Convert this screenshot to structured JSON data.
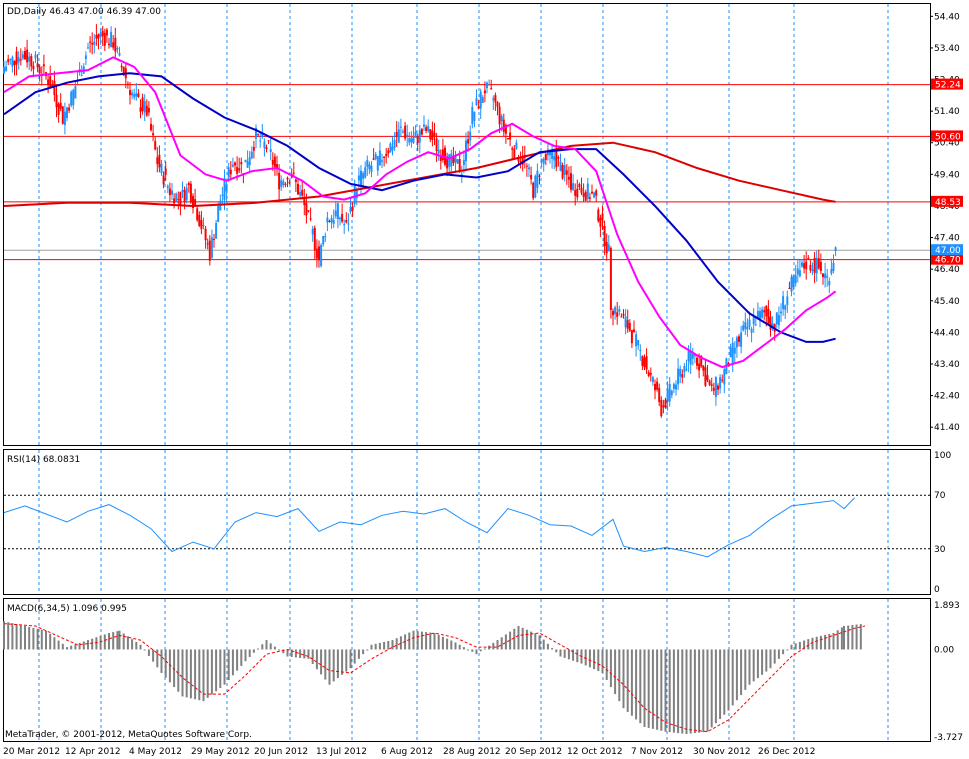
{
  "chart_data": {
    "type": "candlestick",
    "symbol_header": "DD,Daily  46.43 47.00 46.39 47.00",
    "footer": "MetaTrader, © 2001-2012, MetaQuotes Software Corp.",
    "colors": {
      "bull": "#1e90ff",
      "bear": "#ff0000",
      "ma_fast": "#ff00ff",
      "ma_mid": "#0000c8",
      "ma_slow": "#dd0000",
      "level": "#ff0000",
      "grid": "#1e90ff",
      "rsi": "#1e90ff",
      "macd_hist": "#808080",
      "macd_signal": "#ff0000",
      "current_tag": "#1e90ff"
    },
    "x_labels": [
      "20 Mar 2012",
      "12 Apr 2012",
      "4 May 2012",
      "29 May 2012",
      "20 Jun 2012",
      "13 Jul 2012",
      "6 Aug 2012",
      "28 Aug 2012",
      "20 Sep 2012",
      "12 Oct 2012",
      "7 Nov 2012",
      "30 Nov 2012",
      "26 Dec 2012"
    ],
    "price_axis": {
      "ylim": [
        40.9,
        54.6
      ],
      "ticks": [
        "54.40",
        "53.40",
        "52.40",
        "51.40",
        "50.40",
        "49.40",
        "48.40",
        "47.40",
        "46.40",
        "45.40",
        "44.40",
        "43.40",
        "42.40",
        "41.40"
      ]
    },
    "levels": [
      {
        "value": 52.24,
        "label": "52.24"
      },
      {
        "value": 50.6,
        "label": "50.60"
      },
      {
        "value": 48.53,
        "label": "48.53"
      },
      {
        "value": 46.7,
        "label": "46.70"
      }
    ],
    "current_price": {
      "value": 47.0,
      "label": "47.00"
    },
    "price_close": [
      {
        "x": 0,
        "v": 52.8
      },
      {
        "x": 8,
        "v": 53.2
      },
      {
        "x": 14,
        "v": 53.0
      },
      {
        "x": 22,
        "v": 52.3
      },
      {
        "x": 28,
        "v": 51.2
      },
      {
        "x": 33,
        "v": 52.0
      },
      {
        "x": 40,
        "v": 53.4
      },
      {
        "x": 46,
        "v": 53.8
      },
      {
        "x": 52,
        "v": 53.6
      },
      {
        "x": 56,
        "v": 52.8
      },
      {
        "x": 62,
        "v": 51.8
      },
      {
        "x": 68,
        "v": 51.4
      },
      {
        "x": 73,
        "v": 49.8
      },
      {
        "x": 79,
        "v": 48.9
      },
      {
        "x": 84,
        "v": 48.6
      },
      {
        "x": 88,
        "v": 49.0
      },
      {
        "x": 93,
        "v": 48.0
      },
      {
        "x": 98,
        "v": 46.9
      },
      {
        "x": 103,
        "v": 48.6
      },
      {
        "x": 109,
        "v": 49.8
      },
      {
        "x": 114,
        "v": 49.6
      },
      {
        "x": 120,
        "v": 50.6
      },
      {
        "x": 126,
        "v": 50.2
      },
      {
        "x": 131,
        "v": 49.2
      },
      {
        "x": 137,
        "v": 49.4
      },
      {
        "x": 142,
        "v": 48.6
      },
      {
        "x": 147,
        "v": 47.5
      },
      {
        "x": 150,
        "v": 46.7
      },
      {
        "x": 154,
        "v": 48.0
      },
      {
        "x": 159,
        "v": 48.2
      },
      {
        "x": 163,
        "v": 47.7
      },
      {
        "x": 168,
        "v": 49.1
      },
      {
        "x": 173,
        "v": 49.6
      },
      {
        "x": 178,
        "v": 49.8
      },
      {
        "x": 184,
        "v": 50.3
      },
      {
        "x": 189,
        "v": 50.8
      },
      {
        "x": 195,
        "v": 50.5
      },
      {
        "x": 201,
        "v": 50.8
      },
      {
        "x": 207,
        "v": 50.2
      },
      {
        "x": 212,
        "v": 49.8
      },
      {
        "x": 218,
        "v": 49.6
      },
      {
        "x": 223,
        "v": 51.3
      },
      {
        "x": 229,
        "v": 52.1
      },
      {
        "x": 233,
        "v": 51.8
      },
      {
        "x": 238,
        "v": 50.8
      },
      {
        "x": 243,
        "v": 50.2
      },
      {
        "x": 248,
        "v": 49.8
      },
      {
        "x": 252,
        "v": 48.9
      },
      {
        "x": 256,
        "v": 49.8
      },
      {
        "x": 262,
        "v": 50.0
      },
      {
        "x": 266,
        "v": 49.5
      },
      {
        "x": 271,
        "v": 49.0
      },
      {
        "x": 276,
        "v": 48.9
      },
      {
        "x": 281,
        "v": 48.7
      },
      {
        "x": 288,
        "v": 46.9
      },
      {
        "x": 289,
        "v": 45.3
      },
      {
        "x": 293,
        "v": 45.0
      },
      {
        "x": 298,
        "v": 44.5
      },
      {
        "x": 304,
        "v": 43.6
      },
      {
        "x": 309,
        "v": 42.8
      },
      {
        "x": 313,
        "v": 42.0
      },
      {
        "x": 318,
        "v": 42.6
      },
      {
        "x": 323,
        "v": 43.2
      },
      {
        "x": 328,
        "v": 43.8
      },
      {
        "x": 332,
        "v": 43.3
      },
      {
        "x": 337,
        "v": 42.5
      },
      {
        "x": 342,
        "v": 43.0
      },
      {
        "x": 347,
        "v": 43.8
      },
      {
        "x": 352,
        "v": 44.4
      },
      {
        "x": 357,
        "v": 44.8
      },
      {
        "x": 362,
        "v": 45.0
      },
      {
        "x": 367,
        "v": 44.6
      },
      {
        "x": 372,
        "v": 45.5
      },
      {
        "x": 377,
        "v": 46.1
      },
      {
        "x": 382,
        "v": 46.6
      },
      {
        "x": 387,
        "v": 46.5
      },
      {
        "x": 392,
        "v": 46.1
      },
      {
        "x": 396,
        "v": 47.0
      }
    ],
    "ma_fast": [
      {
        "x": 0,
        "v": 52.0
      },
      {
        "x": 12,
        "v": 52.5
      },
      {
        "x": 26,
        "v": 52.6
      },
      {
        "x": 40,
        "v": 52.7
      },
      {
        "x": 52,
        "v": 53.1
      },
      {
        "x": 62,
        "v": 52.8
      },
      {
        "x": 72,
        "v": 52.0
      },
      {
        "x": 84,
        "v": 50.0
      },
      {
        "x": 96,
        "v": 49.4
      },
      {
        "x": 106,
        "v": 49.2
      },
      {
        "x": 118,
        "v": 49.5
      },
      {
        "x": 130,
        "v": 49.6
      },
      {
        "x": 142,
        "v": 49.2
      },
      {
        "x": 152,
        "v": 48.7
      },
      {
        "x": 162,
        "v": 48.6
      },
      {
        "x": 172,
        "v": 48.8
      },
      {
        "x": 182,
        "v": 49.4
      },
      {
        "x": 192,
        "v": 49.8
      },
      {
        "x": 202,
        "v": 50.1
      },
      {
        "x": 212,
        "v": 49.9
      },
      {
        "x": 222,
        "v": 50.2
      },
      {
        "x": 232,
        "v": 50.7
      },
      {
        "x": 242,
        "v": 51.0
      },
      {
        "x": 252,
        "v": 50.6
      },
      {
        "x": 262,
        "v": 50.3
      },
      {
        "x": 272,
        "v": 50.2
      },
      {
        "x": 282,
        "v": 49.5
      },
      {
        "x": 292,
        "v": 47.5
      },
      {
        "x": 302,
        "v": 46.0
      },
      {
        "x": 312,
        "v": 44.9
      },
      {
        "x": 322,
        "v": 44.0
      },
      {
        "x": 332,
        "v": 43.6
      },
      {
        "x": 342,
        "v": 43.3
      },
      {
        "x": 352,
        "v": 43.5
      },
      {
        "x": 362,
        "v": 44.0
      },
      {
        "x": 372,
        "v": 44.5
      },
      {
        "x": 382,
        "v": 45.1
      },
      {
        "x": 392,
        "v": 45.5
      },
      {
        "x": 396,
        "v": 45.7
      }
    ],
    "ma_mid": [
      {
        "x": 0,
        "v": 51.3
      },
      {
        "x": 15,
        "v": 52.0
      },
      {
        "x": 30,
        "v": 52.3
      },
      {
        "x": 45,
        "v": 52.5
      },
      {
        "x": 60,
        "v": 52.6
      },
      {
        "x": 75,
        "v": 52.5
      },
      {
        "x": 90,
        "v": 51.8
      },
      {
        "x": 105,
        "v": 51.2
      },
      {
        "x": 120,
        "v": 50.8
      },
      {
        "x": 135,
        "v": 50.3
      },
      {
        "x": 150,
        "v": 49.6
      },
      {
        "x": 165,
        "v": 49.1
      },
      {
        "x": 180,
        "v": 48.9
      },
      {
        "x": 195,
        "v": 49.2
      },
      {
        "x": 210,
        "v": 49.4
      },
      {
        "x": 225,
        "v": 49.3
      },
      {
        "x": 240,
        "v": 49.5
      },
      {
        "x": 255,
        "v": 50.1
      },
      {
        "x": 270,
        "v": 50.2
      },
      {
        "x": 282,
        "v": 50.2
      },
      {
        "x": 295,
        "v": 49.4
      },
      {
        "x": 310,
        "v": 48.4
      },
      {
        "x": 325,
        "v": 47.3
      },
      {
        "x": 340,
        "v": 46.0
      },
      {
        "x": 355,
        "v": 45.0
      },
      {
        "x": 370,
        "v": 44.4
      },
      {
        "x": 382,
        "v": 44.1
      },
      {
        "x": 390,
        "v": 44.1
      },
      {
        "x": 396,
        "v": 44.2
      }
    ],
    "ma_slow": [
      {
        "x": 0,
        "v": 48.4
      },
      {
        "x": 30,
        "v": 48.5
      },
      {
        "x": 60,
        "v": 48.5
      },
      {
        "x": 90,
        "v": 48.4
      },
      {
        "x": 120,
        "v": 48.5
      },
      {
        "x": 150,
        "v": 48.7
      },
      {
        "x": 175,
        "v": 49.0
      },
      {
        "x": 200,
        "v": 49.3
      },
      {
        "x": 225,
        "v": 49.6
      },
      {
        "x": 250,
        "v": 50.0
      },
      {
        "x": 270,
        "v": 50.3
      },
      {
        "x": 290,
        "v": 50.4
      },
      {
        "x": 310,
        "v": 50.1
      },
      {
        "x": 330,
        "v": 49.6
      },
      {
        "x": 350,
        "v": 49.2
      },
      {
        "x": 370,
        "v": 48.9
      },
      {
        "x": 390,
        "v": 48.6
      },
      {
        "x": 396,
        "v": 48.53
      }
    ],
    "rsi": {
      "label": "RSI(14) 68.0831",
      "ylim": [
        0,
        100
      ],
      "ticks": [
        "100",
        "70",
        "30",
        "0"
      ],
      "levels": [
        70,
        30
      ],
      "points": [
        {
          "x": 0,
          "v": 57
        },
        {
          "x": 10,
          "v": 62
        },
        {
          "x": 20,
          "v": 56
        },
        {
          "x": 30,
          "v": 50
        },
        {
          "x": 40,
          "v": 58
        },
        {
          "x": 50,
          "v": 63
        },
        {
          "x": 60,
          "v": 55
        },
        {
          "x": 70,
          "v": 45
        },
        {
          "x": 80,
          "v": 28
        },
        {
          "x": 90,
          "v": 35
        },
        {
          "x": 100,
          "v": 30
        },
        {
          "x": 110,
          "v": 50
        },
        {
          "x": 120,
          "v": 57
        },
        {
          "x": 130,
          "v": 54
        },
        {
          "x": 140,
          "v": 60
        },
        {
          "x": 150,
          "v": 43
        },
        {
          "x": 160,
          "v": 50
        },
        {
          "x": 170,
          "v": 48
        },
        {
          "x": 180,
          "v": 55
        },
        {
          "x": 190,
          "v": 58
        },
        {
          "x": 200,
          "v": 56
        },
        {
          "x": 210,
          "v": 60
        },
        {
          "x": 220,
          "v": 50
        },
        {
          "x": 230,
          "v": 42
        },
        {
          "x": 240,
          "v": 60
        },
        {
          "x": 250,
          "v": 55
        },
        {
          "x": 260,
          "v": 48
        },
        {
          "x": 270,
          "v": 47
        },
        {
          "x": 280,
          "v": 40
        },
        {
          "x": 290,
          "v": 52
        },
        {
          "x": 295,
          "v": 32
        },
        {
          "x": 305,
          "v": 28
        },
        {
          "x": 315,
          "v": 31
        },
        {
          "x": 325,
          "v": 28
        },
        {
          "x": 335,
          "v": 24
        },
        {
          "x": 345,
          "v": 33
        },
        {
          "x": 355,
          "v": 40
        },
        {
          "x": 365,
          "v": 52
        },
        {
          "x": 375,
          "v": 62
        },
        {
          "x": 385,
          "v": 64
        },
        {
          "x": 395,
          "v": 66
        },
        {
          "x": 400,
          "v": 60
        },
        {
          "x": 405,
          "v": 68
        }
      ]
    },
    "macd": {
      "label": "MACD(6,34,5) 1.096 0.995",
      "ylim": [
        -3.727,
        1.893
      ],
      "ticks": [
        "1.893",
        "0.00",
        "-3.727"
      ],
      "histogram": [
        {
          "x": 0,
          "v": 1.2
        },
        {
          "x": 10,
          "v": 1.0
        },
        {
          "x": 20,
          "v": 0.8
        },
        {
          "x": 30,
          "v": 0.1
        },
        {
          "x": 40,
          "v": 0.4
        },
        {
          "x": 50,
          "v": 0.7
        },
        {
          "x": 55,
          "v": 0.8
        },
        {
          "x": 65,
          "v": 0.2
        },
        {
          "x": 75,
          "v": -1.0
        },
        {
          "x": 85,
          "v": -2.0
        },
        {
          "x": 95,
          "v": -2.2
        },
        {
          "x": 105,
          "v": -1.5
        },
        {
          "x": 115,
          "v": -0.5
        },
        {
          "x": 125,
          "v": 0.4
        },
        {
          "x": 135,
          "v": -0.3
        },
        {
          "x": 145,
          "v": -0.4
        },
        {
          "x": 155,
          "v": -1.5
        },
        {
          "x": 165,
          "v": -0.8
        },
        {
          "x": 175,
          "v": 0.2
        },
        {
          "x": 185,
          "v": 0.4
        },
        {
          "x": 195,
          "v": 0.8
        },
        {
          "x": 205,
          "v": 0.7
        },
        {
          "x": 215,
          "v": 0.3
        },
        {
          "x": 225,
          "v": -0.2
        },
        {
          "x": 235,
          "v": 0.4
        },
        {
          "x": 245,
          "v": 1.0
        },
        {
          "x": 255,
          "v": 0.6
        },
        {
          "x": 265,
          "v": -0.3
        },
        {
          "x": 275,
          "v": -0.6
        },
        {
          "x": 285,
          "v": -1.0
        },
        {
          "x": 295,
          "v": -2.5
        },
        {
          "x": 305,
          "v": -3.3
        },
        {
          "x": 315,
          "v": -3.5
        },
        {
          "x": 325,
          "v": -3.6
        },
        {
          "x": 335,
          "v": -3.5
        },
        {
          "x": 345,
          "v": -2.6
        },
        {
          "x": 355,
          "v": -1.5
        },
        {
          "x": 365,
          "v": -0.8
        },
        {
          "x": 375,
          "v": 0.2
        },
        {
          "x": 385,
          "v": 0.5
        },
        {
          "x": 395,
          "v": 0.7
        },
        {
          "x": 400,
          "v": 1.0
        },
        {
          "x": 410,
          "v": 1.1
        }
      ],
      "signal": [
        {
          "x": 0,
          "v": 1.1
        },
        {
          "x": 15,
          "v": 1.0
        },
        {
          "x": 25,
          "v": 0.6
        },
        {
          "x": 35,
          "v": 0.2
        },
        {
          "x": 45,
          "v": 0.3
        },
        {
          "x": 55,
          "v": 0.6
        },
        {
          "x": 65,
          "v": 0.4
        },
        {
          "x": 75,
          "v": -0.3
        },
        {
          "x": 85,
          "v": -1.2
        },
        {
          "x": 95,
          "v": -1.9
        },
        {
          "x": 105,
          "v": -1.9
        },
        {
          "x": 115,
          "v": -1.1
        },
        {
          "x": 125,
          "v": -0.2
        },
        {
          "x": 135,
          "v": 0.0
        },
        {
          "x": 145,
          "v": -0.3
        },
        {
          "x": 155,
          "v": -0.9
        },
        {
          "x": 165,
          "v": -1.0
        },
        {
          "x": 175,
          "v": -0.4
        },
        {
          "x": 185,
          "v": 0.1
        },
        {
          "x": 195,
          "v": 0.5
        },
        {
          "x": 205,
          "v": 0.7
        },
        {
          "x": 215,
          "v": 0.5
        },
        {
          "x": 225,
          "v": 0.1
        },
        {
          "x": 235,
          "v": 0.1
        },
        {
          "x": 245,
          "v": 0.6
        },
        {
          "x": 255,
          "v": 0.7
        },
        {
          "x": 265,
          "v": 0.2
        },
        {
          "x": 275,
          "v": -0.3
        },
        {
          "x": 285,
          "v": -0.7
        },
        {
          "x": 295,
          "v": -1.5
        },
        {
          "x": 305,
          "v": -2.5
        },
        {
          "x": 315,
          "v": -3.1
        },
        {
          "x": 325,
          "v": -3.4
        },
        {
          "x": 335,
          "v": -3.5
        },
        {
          "x": 345,
          "v": -3.0
        },
        {
          "x": 355,
          "v": -2.1
        },
        {
          "x": 365,
          "v": -1.2
        },
        {
          "x": 375,
          "v": -0.3
        },
        {
          "x": 385,
          "v": 0.3
        },
        {
          "x": 395,
          "v": 0.6
        },
        {
          "x": 405,
          "v": 0.9
        },
        {
          "x": 410,
          "v": 1.0
        }
      ]
    }
  }
}
